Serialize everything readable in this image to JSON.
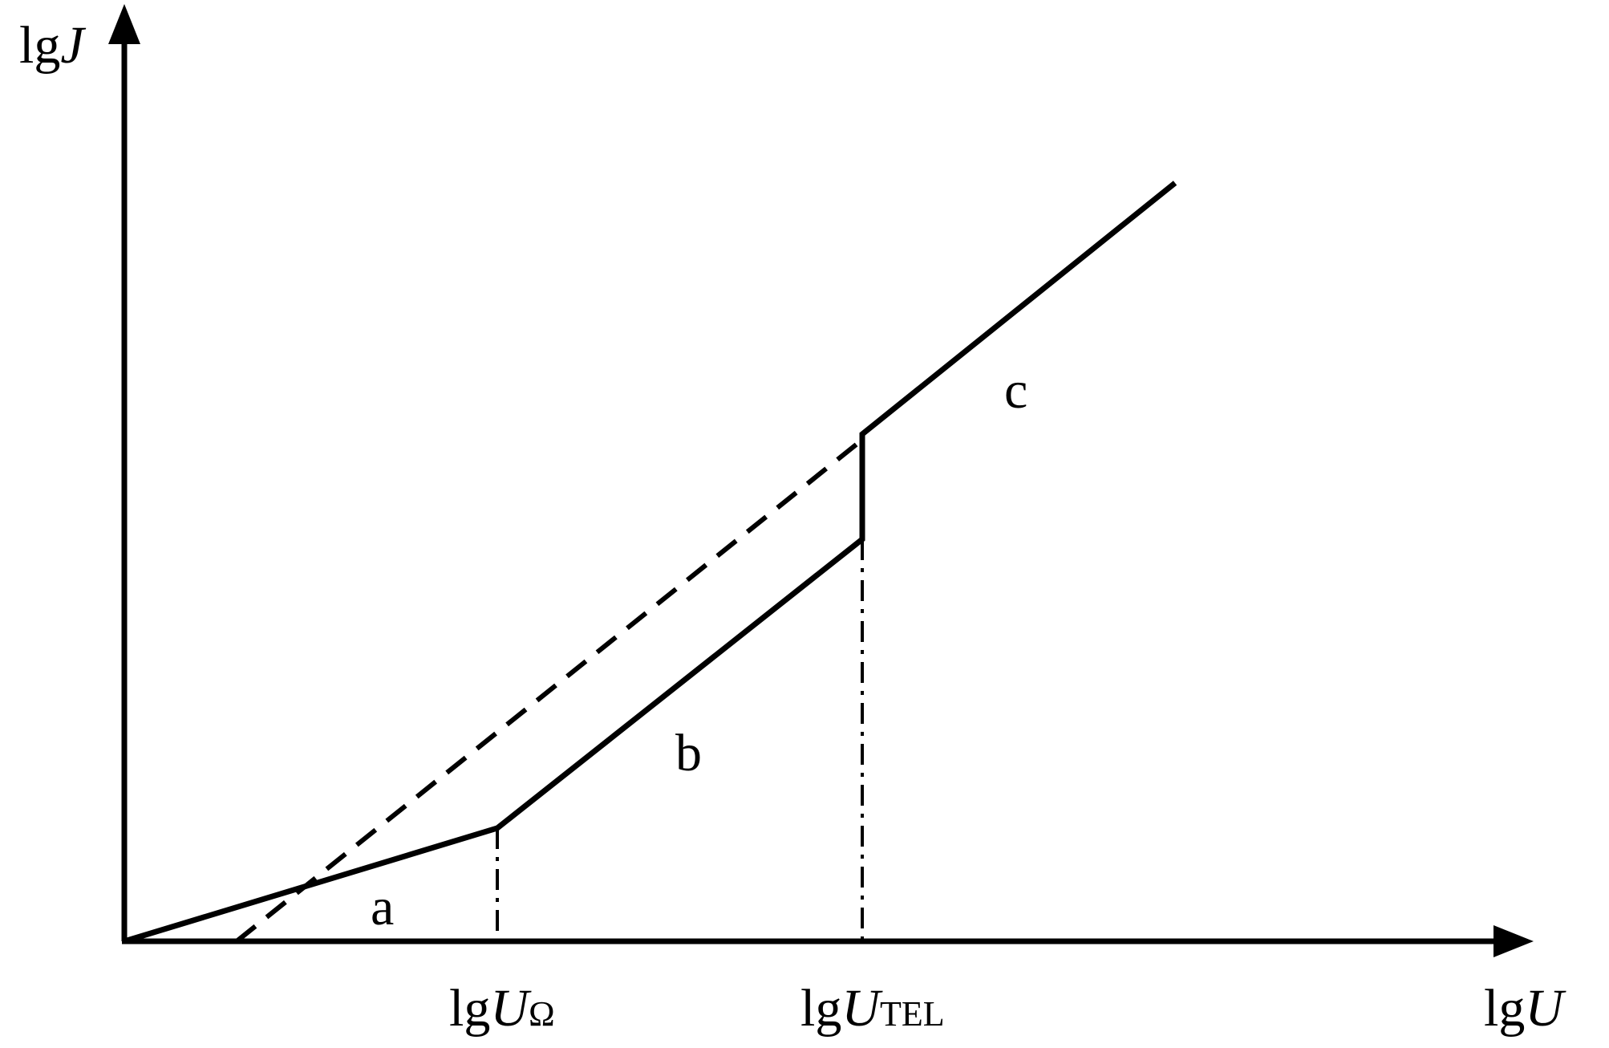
{
  "axes": {
    "y_label": {
      "prefix": "lg",
      "var": "J"
    },
    "x_label": {
      "prefix": "lg",
      "var": "U"
    }
  },
  "ticks": {
    "u_omega": {
      "prefix": "lg",
      "var": "U",
      "sub": "Ω"
    },
    "u_tel": {
      "prefix": "lg",
      "var": "U",
      "sub": "TEL"
    }
  },
  "regions": {
    "a": "a",
    "b": "b",
    "c": "c"
  },
  "colors": {
    "ink": "#000000",
    "background": "#ffffff"
  }
}
